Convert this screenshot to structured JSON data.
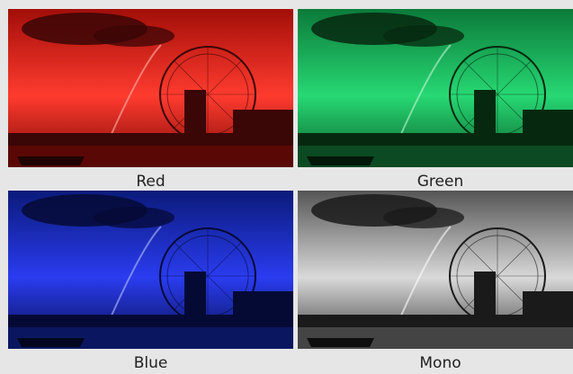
{
  "tiles": [
    {
      "id": "red",
      "label": "Red",
      "tint": "#ff3b2f",
      "shadow": "#3a0606",
      "filter": "tint-red"
    },
    {
      "id": "green",
      "label": "Green",
      "tint": "#27d873",
      "shadow": "#06280f",
      "filter": "tint-green"
    },
    {
      "id": "blue",
      "label": "Blue",
      "tint": "#2a3cf0",
      "shadow": "#050a35",
      "filter": "tint-blue"
    },
    {
      "id": "mono",
      "label": "Mono",
      "tint": "#d9d9d9",
      "shadow": "#1a1a1a",
      "filter": "tint-mono"
    }
  ]
}
